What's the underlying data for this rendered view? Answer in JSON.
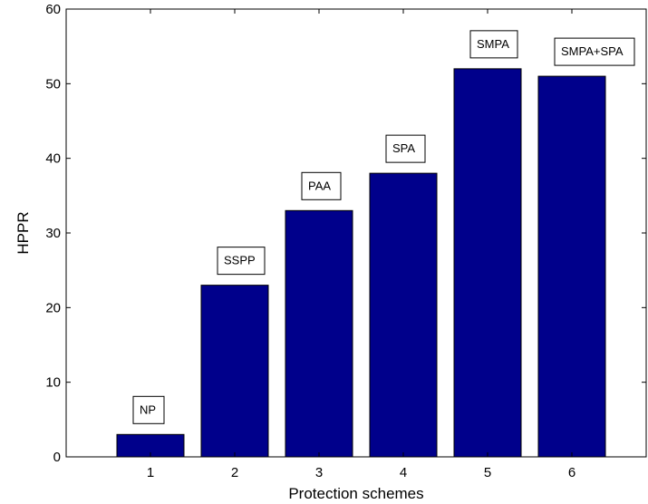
{
  "chart_data": {
    "type": "bar",
    "categories": [
      "1",
      "2",
      "3",
      "4",
      "5",
      "6"
    ],
    "values": [
      3,
      23,
      33,
      38,
      52,
      51
    ],
    "annotations": [
      "NP",
      "SSPP",
      "PAA",
      "SPA",
      "SMPA",
      "SMPA+SPA"
    ],
    "title": "",
    "xlabel": "Protection schemes",
    "ylabel": "HPPR",
    "ylim": [
      0,
      60
    ],
    "yticks": [
      "0",
      "10",
      "20",
      "30",
      "40",
      "50",
      "60"
    ],
    "grid": false,
    "bar_color": "#00008b",
    "bar_edge_color": "#000000"
  }
}
